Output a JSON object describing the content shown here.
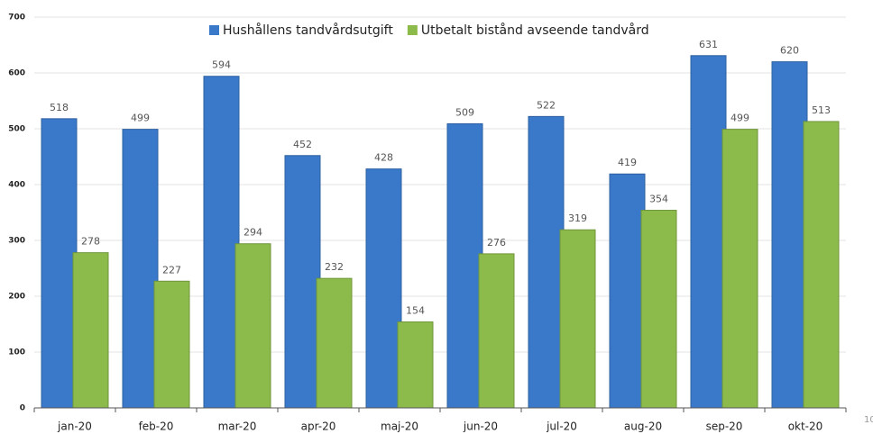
{
  "chart_data": {
    "type": "bar",
    "categories": [
      "jan-20",
      "feb-20",
      "mar-20",
      "apr-20",
      "maj-20",
      "jun-20",
      "jul-20",
      "aug-20",
      "sep-20",
      "okt-20"
    ],
    "series": [
      {
        "name": "Hushållens tandvårdsutgift",
        "color": "#3a78c9",
        "values": [
          518,
          499,
          594,
          452,
          428,
          509,
          522,
          419,
          631,
          620
        ]
      },
      {
        "name": "Utbetalt bistånd avseende tandvård",
        "color": "#8cbb4b",
        "values": [
          278,
          227,
          294,
          232,
          154,
          276,
          319,
          354,
          499,
          513
        ]
      }
    ],
    "ylim": [
      0,
      700
    ],
    "yticks": [
      0,
      100,
      200,
      300,
      400,
      500,
      600,
      700
    ],
    "grid": true,
    "legend": "top",
    "corner_label": "10"
  }
}
